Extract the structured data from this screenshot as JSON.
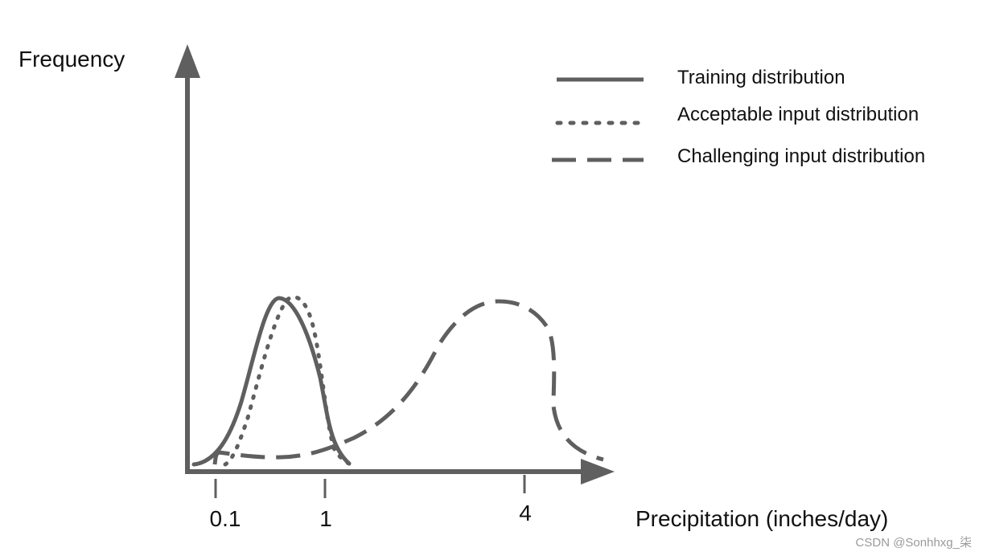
{
  "diagram": {
    "title": "",
    "axes": {
      "y_label": "Frequency",
      "x_label": "Precipitation (inches/day)",
      "x_ticks": [
        {
          "value": 0.1,
          "label": "0.1"
        },
        {
          "value": 1,
          "label": "1"
        },
        {
          "value": 4,
          "label": "4"
        }
      ]
    },
    "legend": {
      "training": "Training distribution",
      "acceptable": "Acceptable input distribution",
      "challenging": "Challenging input distribution"
    },
    "curves": [
      {
        "name": "Training distribution",
        "style": "solid",
        "peak_x_label": "between 0.1 and 1"
      },
      {
        "name": "Acceptable input distribution",
        "style": "dotted",
        "peak_x_label": "between 0.1 and 1"
      },
      {
        "name": "Challenging input distribution",
        "style": "dashed",
        "peak_x_label": "near 4"
      }
    ],
    "colors": {
      "line": "#5f5f5f",
      "text": "#111111",
      "watermark": "#9a9a9a",
      "background": "#ffffff"
    }
  },
  "watermark": "CSDN @Sonhhxg_柒"
}
